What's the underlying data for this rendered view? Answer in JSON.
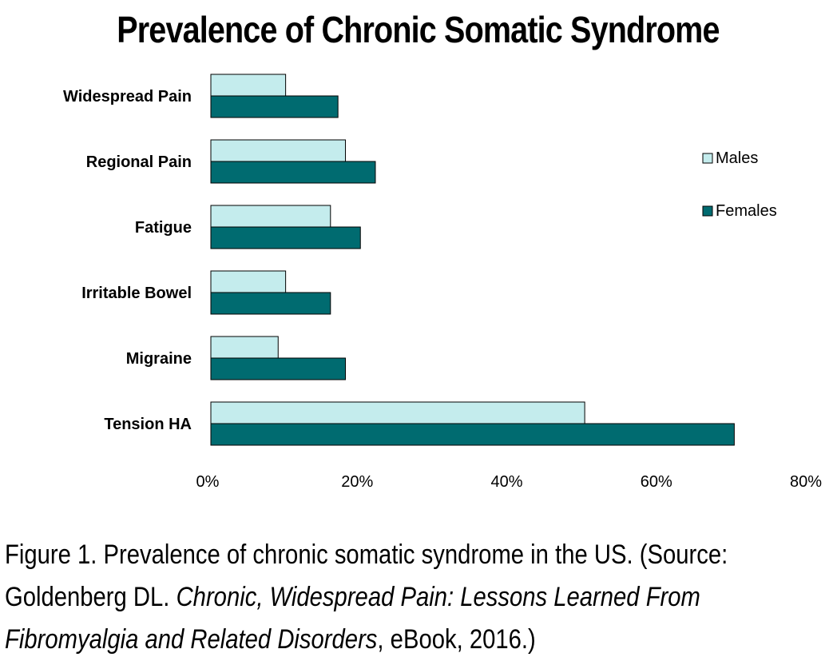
{
  "chart_data": {
    "type": "bar",
    "orientation": "horizontal",
    "title": "Prevalence of Chronic Somatic Syndrome",
    "categories": [
      "Widespread Pain",
      "Regional Pain",
      "Fatigue",
      "Irritable Bowel",
      "Migraine",
      "Tension HA"
    ],
    "series": [
      {
        "name": "Males",
        "color": "#c4eced",
        "values": [
          10,
          18,
          16,
          10,
          9,
          50
        ]
      },
      {
        "name": "Females",
        "color": "#006b70",
        "values": [
          17,
          22,
          20,
          16,
          18,
          70
        ]
      }
    ],
    "xlim": [
      0,
      80
    ],
    "xticks": [
      0,
      20,
      40,
      60,
      80
    ],
    "xtick_labels": [
      "0%",
      "20%",
      "40%",
      "60%",
      "80%"
    ],
    "xlabel": "",
    "ylabel": "",
    "grid": false,
    "legend_position": "right"
  },
  "caption": {
    "line1": "Figure 1. Prevalence of chronic somatic syndrome in the US. (Source:",
    "line2_prefix": "Goldenberg DL. ",
    "line2_italic": "Chronic, Widespread Pain: Lessons Learned From",
    "line3_italic": "Fibromyalgia and Related Disorders",
    "line3_suffix": ", eBook, 2016.)"
  }
}
